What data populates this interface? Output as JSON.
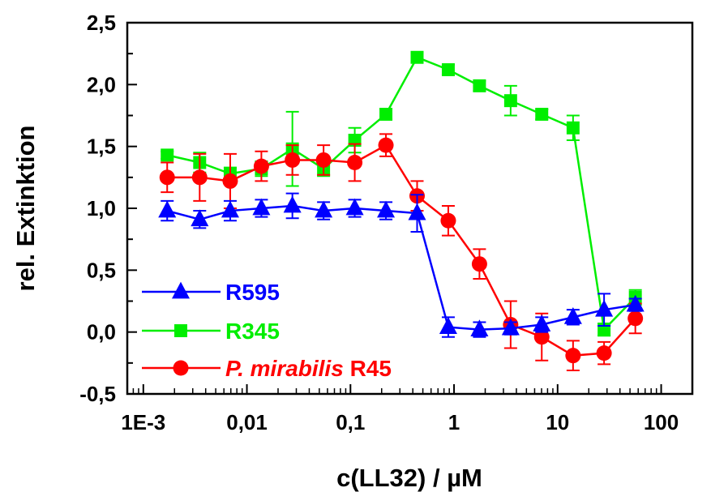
{
  "chart_data": {
    "type": "line",
    "title": "",
    "xlabel": "c(LL32) / µM",
    "ylabel": "rel. Extinktion",
    "x_scale": "log",
    "xlim": [
      0.0007,
      200
    ],
    "ylim": [
      -0.5,
      2.5
    ],
    "x_ticks": [
      {
        "value": 0.001,
        "label": "1E-3"
      },
      {
        "value": 0.01,
        "label": "0,01"
      },
      {
        "value": 0.1,
        "label": "0,1"
      },
      {
        "value": 1,
        "label": "1"
      },
      {
        "value": 10,
        "label": "10"
      },
      {
        "value": 100,
        "label": "100"
      }
    ],
    "y_ticks": [
      {
        "value": -0.5,
        "label": "-0,5"
      },
      {
        "value": 0.0,
        "label": "0,0"
      },
      {
        "value": 0.5,
        "label": "0,5"
      },
      {
        "value": 1.0,
        "label": "1,0"
      },
      {
        "value": 1.5,
        "label": "1,5"
      },
      {
        "value": 2.0,
        "label": "2,0"
      },
      {
        "value": 2.5,
        "label": "2,5"
      }
    ],
    "grid": false,
    "legend_position": "bottom-left",
    "x": [
      0.0017,
      0.0035,
      0.0069,
      0.0138,
      0.0275,
      0.055,
      0.11,
      0.22,
      0.44,
      0.88,
      1.76,
      3.52,
      7.03,
      14.1,
      28.1,
      56.3
    ],
    "series": [
      {
        "name": "R595",
        "name_parts": [
          {
            "text": "R595",
            "italic": false
          }
        ],
        "color": "#0000ff",
        "marker": "triangle",
        "values": [
          0.98,
          0.91,
          0.98,
          1.0,
          1.02,
          0.98,
          1.0,
          0.98,
          0.96,
          0.04,
          0.02,
          0.03,
          0.06,
          0.12,
          0.18,
          0.22
        ],
        "errors": [
          0.08,
          0.07,
          0.08,
          0.07,
          0.1,
          0.07,
          0.07,
          0.07,
          0.15,
          0.08,
          0.06,
          0.05,
          0.06,
          0.06,
          0.13,
          0.05
        ]
      },
      {
        "name": "R345",
        "name_parts": [
          {
            "text": "R345",
            "italic": false
          }
        ],
        "color": "#00ee00",
        "marker": "square",
        "values": [
          1.43,
          1.37,
          1.28,
          1.32,
          1.48,
          1.32,
          1.55,
          1.76,
          2.22,
          2.12,
          1.99,
          1.87,
          1.76,
          1.65,
          0.02,
          0.28
        ],
        "errors": [
          0.03,
          0.08,
          0.05,
          0.06,
          0.3,
          0.06,
          0.1,
          0.04,
          0.04,
          0.04,
          0.04,
          0.12,
          0.04,
          0.1,
          0.05,
          0.06
        ]
      },
      {
        "name": "P. mirabilis R45",
        "name_parts": [
          {
            "text": "P. mirabilis",
            "italic": true
          },
          {
            "text": " R45",
            "italic": false
          }
        ],
        "color": "#ff0000",
        "marker": "circle",
        "values": [
          1.25,
          1.25,
          1.22,
          1.34,
          1.39,
          1.39,
          1.37,
          1.51,
          1.1,
          0.9,
          0.55,
          0.06,
          -0.04,
          -0.19,
          -0.17,
          0.11
        ],
        "errors": [
          0.12,
          0.19,
          0.22,
          0.12,
          0.12,
          0.12,
          0.15,
          0.09,
          0.12,
          0.12,
          0.12,
          0.19,
          0.19,
          0.12,
          0.09,
          0.12
        ]
      }
    ]
  }
}
